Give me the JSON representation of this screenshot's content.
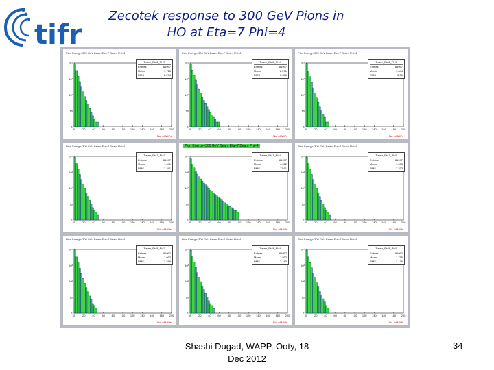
{
  "slide": {
    "title_line1": "Zecotek response to 300 GeV Pions in",
    "title_line2": "HO at Eta=7 Phi=4",
    "footer_line1": "Shashi Dugad, WAPP, Ooty, 18",
    "footer_line2": "Dec 2012",
    "page_number": "34",
    "logo_text": "tifr",
    "colors": {
      "title": "#0d1d8a",
      "logo": "#1b5fb5",
      "fill": "#41d441",
      "edge": "#0a1aa0"
    }
  },
  "chart_data": [
    {
      "type": "bar",
      "header": "Pion Energy=300 GeV Beam Eta=7 Beam Phi=4",
      "highlight": false,
      "stats": {
        "name": "Tower_Eta6_Phi3",
        "entries": "81997",
        "mean": "1.715",
        "rms": "2.274"
      },
      "xlabel": "No. of MIPs",
      "log_y": true,
      "xlim": [
        0,
        200
      ],
      "x_ticks": [
        "0",
        "20",
        "40",
        "60",
        "80",
        "100",
        "120",
        "140",
        "160",
        "180",
        "200"
      ],
      "y_ticks": [
        "1",
        "10",
        "10²",
        "10³",
        "10⁴"
      ],
      "values": [
        9000,
        3400,
        1500,
        700,
        320,
        160,
        80,
        45,
        25,
        14,
        8,
        5,
        3,
        2,
        2,
        1,
        1,
        1,
        0,
        1,
        0,
        0,
        1,
        0,
        0,
        0,
        1,
        0,
        0,
        0
      ]
    },
    {
      "type": "bar",
      "header": "Pion Energy=300 GeV Beam Eta=7 Beam Phi=4",
      "highlight": false,
      "stats": {
        "name": "Tower_Eta6_Phi4",
        "entries": "81997",
        "mean": "2.271",
        "rms": "5.286"
      },
      "xlabel": "No. of MIPs",
      "log_y": true,
      "xlim": [
        0,
        200
      ],
      "x_ticks": [
        "0",
        "20",
        "40",
        "60",
        "80",
        "100",
        "120",
        "140",
        "160",
        "180",
        "200"
      ],
      "y_ticks": [
        "1",
        "10",
        "10²",
        "10³",
        "10⁴"
      ],
      "values": [
        8500,
        3600,
        1700,
        850,
        430,
        230,
        130,
        75,
        45,
        28,
        18,
        12,
        8,
        5,
        4,
        3,
        2,
        2,
        1,
        1,
        1,
        0,
        1,
        0,
        1,
        0,
        0,
        0,
        0,
        0
      ]
    },
    {
      "type": "bar",
      "header": "Pion Energy=300 GeV Beam Eta=7 Beam Phi=4",
      "highlight": false,
      "stats": {
        "name": "Tower_Eta6_Phi5",
        "entries": "81997",
        "mean": "1.644",
        "rms": "2.50"
      },
      "xlabel": "No. of MIPs",
      "log_y": true,
      "xlim": [
        0,
        200
      ],
      "x_ticks": [
        "0",
        "20",
        "40",
        "60",
        "80",
        "100",
        "120",
        "140",
        "160",
        "180",
        "200"
      ],
      "y_ticks": [
        "1",
        "10",
        "10²",
        "10³",
        "10⁴"
      ],
      "values": [
        9200,
        3300,
        1400,
        620,
        280,
        130,
        65,
        35,
        18,
        10,
        6,
        4,
        2,
        2,
        1,
        1,
        1,
        0,
        1,
        0,
        0,
        0,
        0,
        1,
        0,
        0,
        0,
        0,
        0,
        0
      ]
    },
    {
      "type": "bar",
      "header": "Pion Energy=300 GeV Beam Eta=7 Beam Phi=4",
      "highlight": false,
      "stats": {
        "name": "Tower_Eta7_Phi3",
        "entries": "81997",
        "mean": "1.911",
        "rms": "3.341"
      },
      "xlabel": "No. of MIPs",
      "log_y": true,
      "xlim": [
        0,
        200
      ],
      "x_ticks": [
        "0",
        "20",
        "40",
        "60",
        "80",
        "100",
        "120",
        "140",
        "160",
        "180",
        "200"
      ],
      "y_ticks": [
        "1",
        "10",
        "10²",
        "10³",
        "10⁴"
      ],
      "values": [
        8800,
        3500,
        1550,
        730,
        350,
        180,
        95,
        52,
        30,
        17,
        10,
        6,
        4,
        3,
        2,
        1,
        1,
        1,
        1,
        0,
        0,
        1,
        0,
        0,
        0,
        0,
        0,
        0,
        0,
        0
      ]
    },
    {
      "type": "bar",
      "header": "Pion Energy=300 GeV Beam Eta=7 Beam Phi=4",
      "highlight": true,
      "stats": {
        "name": "Tower_Eta7_Phi4",
        "entries": "81997",
        "mean": "4.222",
        "rms": "17.61"
      },
      "xlabel": "No. of MIPs",
      "log_y": true,
      "xlim": [
        0,
        200
      ],
      "x_ticks": [
        "0",
        "20",
        "40",
        "60",
        "80",
        "100",
        "120",
        "140",
        "160",
        "180",
        "200"
      ],
      "y_ticks": [
        "1",
        "10",
        "10²",
        "10³",
        "10⁴"
      ],
      "values": [
        7000,
        3300,
        1900,
        1150,
        760,
        520,
        380,
        280,
        210,
        160,
        120,
        95,
        75,
        60,
        48,
        40,
        33,
        27,
        22,
        18,
        15,
        12,
        10,
        8,
        7,
        6,
        5,
        4,
        4,
        3
      ]
    },
    {
      "type": "bar",
      "header": "Pion Energy=300 GeV Beam Eta=7 Beam Phi=4",
      "highlight": false,
      "stats": {
        "name": "Tower_Eta7_Phi5",
        "entries": "81997",
        "mean": "1.933",
        "rms": "3.333"
      },
      "xlabel": "No. of MIPs",
      "log_y": true,
      "xlim": [
        0,
        200
      ],
      "x_ticks": [
        "0",
        "20",
        "40",
        "60",
        "80",
        "100",
        "120",
        "140",
        "160",
        "180",
        "200"
      ],
      "y_ticks": [
        "1",
        "10",
        "10²",
        "10³",
        "10⁴"
      ],
      "values": [
        8800,
        3500,
        1550,
        730,
        350,
        180,
        95,
        52,
        30,
        17,
        10,
        6,
        4,
        3,
        2,
        1,
        1,
        1,
        0,
        1,
        0,
        0,
        1,
        0,
        0,
        0,
        0,
        0,
        0,
        0
      ]
    },
    {
      "type": "bar",
      "header": "Pion Energy=300 GeV Beam Eta=7 Beam Phi=4",
      "highlight": false,
      "stats": {
        "name": "Tower_Eta8_Phi3",
        "entries": "81997",
        "mean": "1.662",
        "rms": "2.279"
      },
      "xlabel": "No. of MIPs",
      "log_y": true,
      "xlim": [
        0,
        200
      ],
      "x_ticks": [
        "0",
        "20",
        "40",
        "60",
        "80",
        "100",
        "120",
        "140",
        "160",
        "180",
        "200"
      ],
      "y_ticks": [
        "1",
        "10",
        "10²",
        "10³",
        "10⁴"
      ],
      "values": [
        9100,
        3400,
        1450,
        660,
        300,
        150,
        75,
        40,
        22,
        12,
        7,
        4,
        3,
        2,
        1,
        1,
        1,
        0,
        1,
        0,
        0,
        0,
        0,
        0,
        1,
        0,
        0,
        0,
        0,
        0
      ]
    },
    {
      "type": "bar",
      "header": "Pion Energy=300 GeV Beam Eta=7 Beam Phi=4",
      "highlight": false,
      "stats": {
        "name": "Tower_Eta8_Phi4",
        "entries": "81997",
        "mean": "1.932",
        "rms": "3.183"
      },
      "xlabel": "No. of MIPs",
      "log_y": true,
      "xlim": [
        0,
        200
      ],
      "x_ticks": [
        "0",
        "20",
        "40",
        "60",
        "80",
        "100",
        "120",
        "140",
        "160",
        "180",
        "200"
      ],
      "y_ticks": [
        "1",
        "10",
        "10²",
        "10³",
        "10⁴"
      ],
      "values": [
        8800,
        3500,
        1550,
        730,
        350,
        180,
        95,
        52,
        30,
        17,
        10,
        6,
        4,
        3,
        2,
        1,
        1,
        1,
        1,
        0,
        0,
        1,
        0,
        0,
        0,
        0,
        0,
        0,
        0,
        0
      ]
    },
    {
      "type": "bar",
      "header": "Pion Energy=300 GeV Beam Eta=7 Beam Phi=4",
      "highlight": false,
      "stats": {
        "name": "Tower_Eta8_Phi5",
        "entries": "81997",
        "mean": "1.715",
        "rms": "2.176"
      },
      "xlabel": "No. of MIPs",
      "log_y": true,
      "xlim": [
        0,
        200
      ],
      "x_ticks": [
        "0",
        "20",
        "40",
        "60",
        "80",
        "100",
        "120",
        "140",
        "160",
        "180",
        "200"
      ],
      "y_ticks": [
        "1",
        "10",
        "10²",
        "10³",
        "10⁴"
      ],
      "values": [
        9000,
        3400,
        1500,
        700,
        320,
        160,
        80,
        45,
        25,
        14,
        8,
        5,
        3,
        2,
        1,
        1,
        1,
        0,
        1,
        0,
        0,
        0,
        1,
        0,
        0,
        0,
        0,
        0,
        0,
        0
      ]
    }
  ]
}
